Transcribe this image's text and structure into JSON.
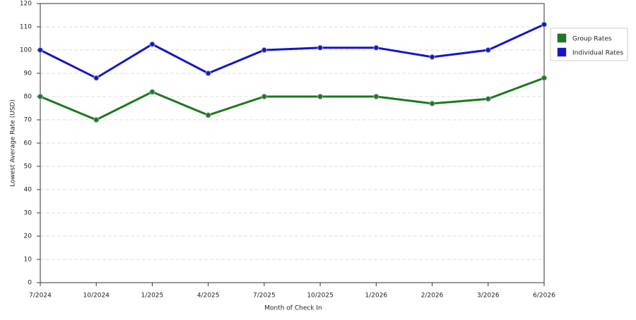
{
  "chart_data": {
    "type": "line",
    "x_label": "Month of Check In",
    "y_label": "Lowest Average Rate (USD)",
    "categories": [
      "7/2024",
      "10/2024",
      "1/2025",
      "4/2025",
      "7/2025",
      "10/2025",
      "1/2026",
      "2/2026",
      "3/2026",
      "6/2026"
    ],
    "series": [
      {
        "name": "Group Rates",
        "color": "#1a7a1a",
        "values": [
          80,
          70,
          82,
          72,
          80,
          80,
          80,
          77,
          79,
          88
        ]
      },
      {
        "name": "Individual Rates",
        "color": "#1515c8",
        "values": [
          100,
          88,
          102.5,
          90,
          100,
          101,
          101,
          97,
          100,
          111
        ]
      }
    ],
    "ylim": [
      0,
      120
    ],
    "yticks": [
      0,
      10,
      20,
      30,
      40,
      50,
      60,
      70,
      80,
      90,
      100,
      110,
      120
    ],
    "grid": true,
    "legend": "right"
  }
}
